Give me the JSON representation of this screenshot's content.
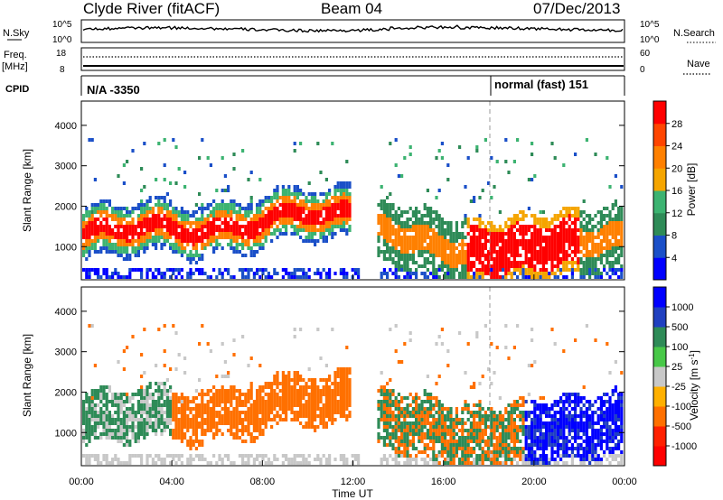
{
  "header": {
    "title": "Clyde River (fitACF)",
    "beam": "Beam 04",
    "date": "07/Dec/2013"
  },
  "strips": {
    "nsky": {
      "label": "N.Sky",
      "tick_top": "10^5",
      "tick_bottom": "10^0"
    },
    "nsearch": {
      "label": "N.Search",
      "tick_top": "10^5",
      "tick_bottom": "10^0"
    },
    "freq": {
      "label_top": "Freq.",
      "label_bottom": "[MHz]",
      "tick_top": "18",
      "tick_bottom": "8"
    },
    "nave": {
      "label": "Nave",
      "tick_top": "60",
      "tick_bottom": "0"
    },
    "cpid": {
      "label": "CPID",
      "segments": [
        "N/A -3350",
        "normal (fast) 151"
      ]
    }
  },
  "chart_data": [
    {
      "type": "heatmap",
      "panel": "power",
      "ylabel": "Slant Range [km]",
      "ylim": [
        180,
        4600
      ],
      "yticks": [
        "1000",
        "2000",
        "3000",
        "4000"
      ],
      "xlim_hours": [
        0,
        24
      ],
      "colorbar": {
        "label": "Power [dB]",
        "range": [
          0,
          32
        ],
        "ticks": [
          "4",
          "8",
          "12",
          "16",
          "20",
          "24",
          "28"
        ],
        "colors": [
          "#0000ff",
          "#1a4fc8",
          "#2e8b57",
          "#3cb371",
          "#f5a500",
          "#ff8000",
          "#ff4500",
          "#ff0000"
        ]
      }
    },
    {
      "type": "heatmap",
      "panel": "velocity",
      "ylabel": "Slant Range [km]",
      "ylim": [
        180,
        4600
      ],
      "yticks": [
        "1000",
        "2000",
        "3000",
        "4000"
      ],
      "xlabel": "Time UT",
      "xticks": [
        "00:00",
        "04:00",
        "08:00",
        "12:00",
        "16:00",
        "20:00",
        "00:00"
      ],
      "colorbar": {
        "label": "Velocity",
        "unit_prefix": "[m s",
        "unit_exp": "-1",
        "unit_suffix": "]",
        "ticks": [
          "1000",
          "500",
          "100",
          "25",
          "-25",
          "-100",
          "-500",
          "-1000"
        ],
        "colors": [
          "#0000ff",
          "#2040c0",
          "#2e8b57",
          "#48c848",
          "#c8c8c8",
          "#ffb000",
          "#ff7000",
          "#ff2000",
          "#ff0000"
        ]
      }
    }
  ]
}
